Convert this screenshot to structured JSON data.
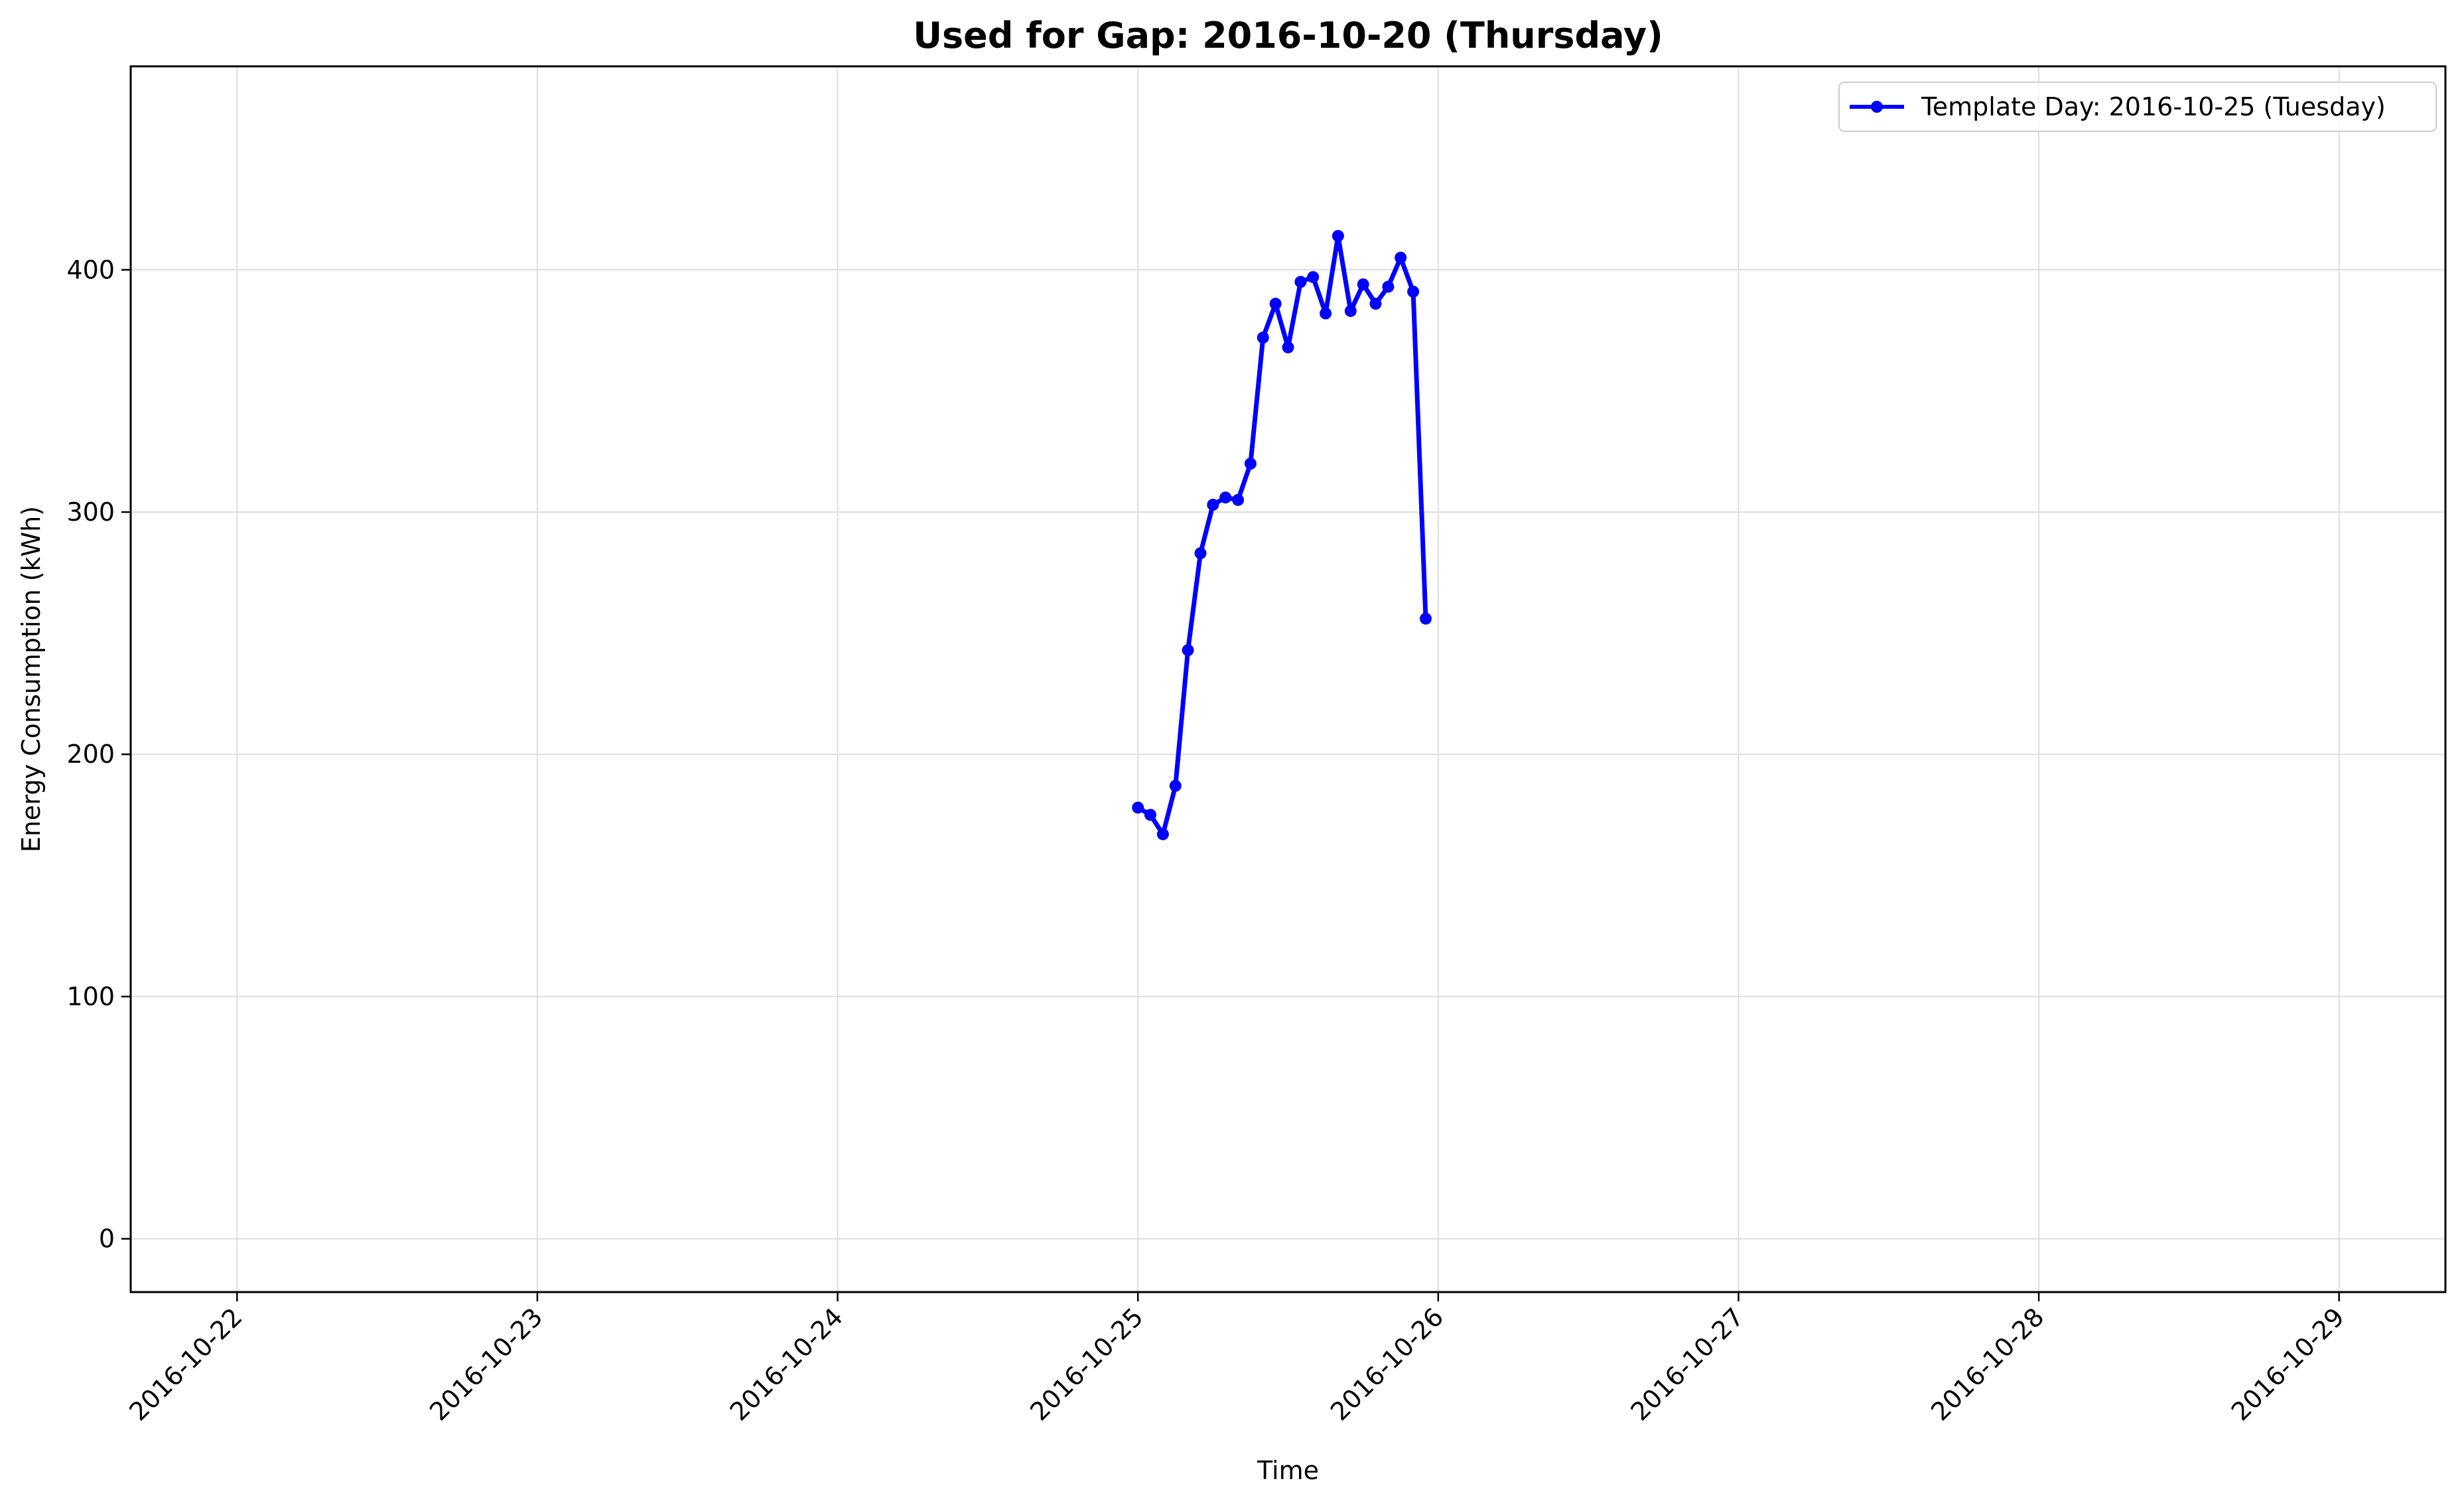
{
  "chart_data": {
    "type": "line",
    "title": "Used for Gap: 2016-10-20 (Thursday)",
    "xlabel": "Time",
    "ylabel": "Energy Consumption (kWh)",
    "x_axis_type": "datetime",
    "xlim": [
      "2016-10-21 15:30",
      "2016-10-29 08:30"
    ],
    "ylim": [
      -22,
      484
    ],
    "x_ticks": [
      "2016-10-22",
      "2016-10-23",
      "2016-10-24",
      "2016-10-25",
      "2016-10-26",
      "2016-10-27",
      "2016-10-28",
      "2016-10-29"
    ],
    "y_ticks": [
      0,
      100,
      200,
      300,
      400
    ],
    "grid": true,
    "legend_position": "upper right",
    "series": [
      {
        "name": "Template Day: 2016-10-25 (Tuesday)",
        "color": "#0000ff",
        "marker": "circle",
        "x": [
          "2016-10-25 00:00",
          "2016-10-25 01:00",
          "2016-10-25 02:00",
          "2016-10-25 03:00",
          "2016-10-25 04:00",
          "2016-10-25 05:00",
          "2016-10-25 06:00",
          "2016-10-25 07:00",
          "2016-10-25 08:00",
          "2016-10-25 09:00",
          "2016-10-25 10:00",
          "2016-10-25 11:00",
          "2016-10-25 12:00",
          "2016-10-25 13:00",
          "2016-10-25 14:00",
          "2016-10-25 15:00",
          "2016-10-25 16:00",
          "2016-10-25 17:00",
          "2016-10-25 18:00",
          "2016-10-25 19:00",
          "2016-10-25 20:00",
          "2016-10-25 21:00",
          "2016-10-25 22:00",
          "2016-10-25 23:00"
        ],
        "values": [
          178,
          175,
          167,
          187,
          243,
          283,
          303,
          306,
          305,
          320,
          372,
          386,
          368,
          395,
          397,
          382,
          414,
          383,
          394,
          386,
          393,
          405,
          391,
          256
        ]
      }
    ]
  }
}
